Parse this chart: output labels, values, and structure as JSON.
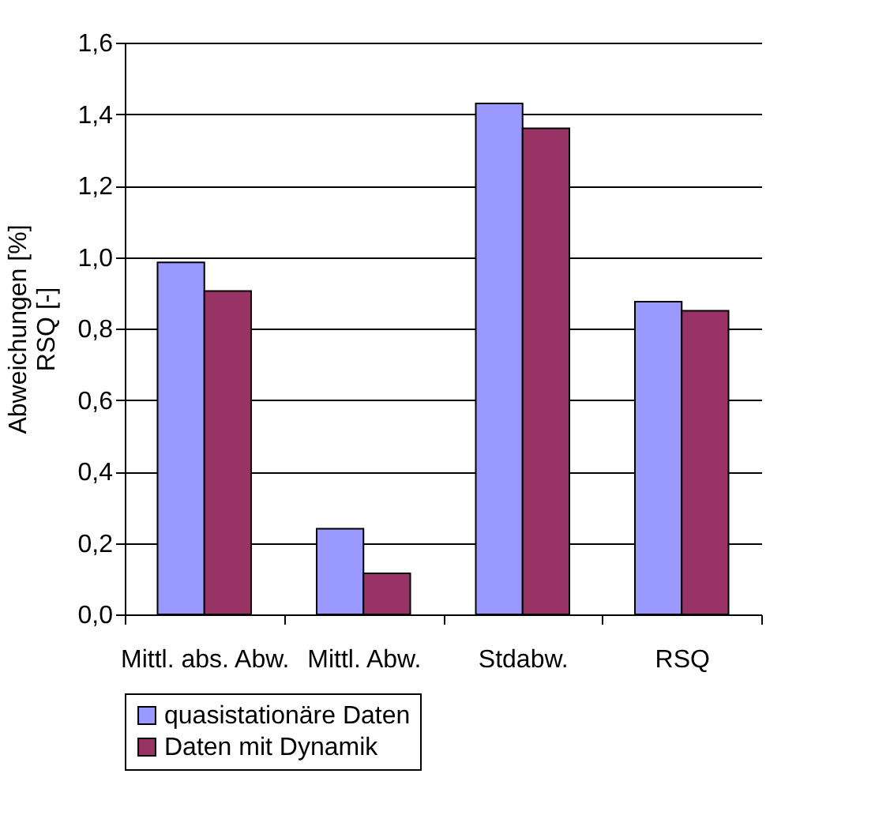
{
  "chart_data": {
    "type": "bar",
    "ylabel": "Abweichungen [%]\nRSQ [-]",
    "categories": [
      "Mittl. abs.\nAbw.",
      "Mittl.\nAbw.",
      "Stdabw.",
      "RSQ"
    ],
    "series": [
      {
        "name": "quasistationäre Daten",
        "color": "#9999ff",
        "values": [
          0.985,
          0.24,
          1.43,
          0.875
        ]
      },
      {
        "name": "Daten mit Dynamik",
        "color": "#993366",
        "values": [
          0.905,
          0.115,
          1.36,
          0.85
        ]
      }
    ],
    "ylim": [
      0,
      1.6
    ],
    "yticks": [
      {
        "value": 0,
        "label": "0,0"
      },
      {
        "value": 0.2,
        "label": "0,2"
      },
      {
        "value": 0.4,
        "label": "0,4"
      },
      {
        "value": 0.6,
        "label": "0,6"
      },
      {
        "value": 0.8,
        "label": "0,8"
      },
      {
        "value": 1.0,
        "label": "1,0"
      },
      {
        "value": 1.2,
        "label": "1,2"
      },
      {
        "value": 1.4,
        "label": "1,4"
      },
      {
        "value": 1.6,
        "label": "1,6"
      }
    ],
    "grid": "y",
    "legend": "bottom"
  }
}
